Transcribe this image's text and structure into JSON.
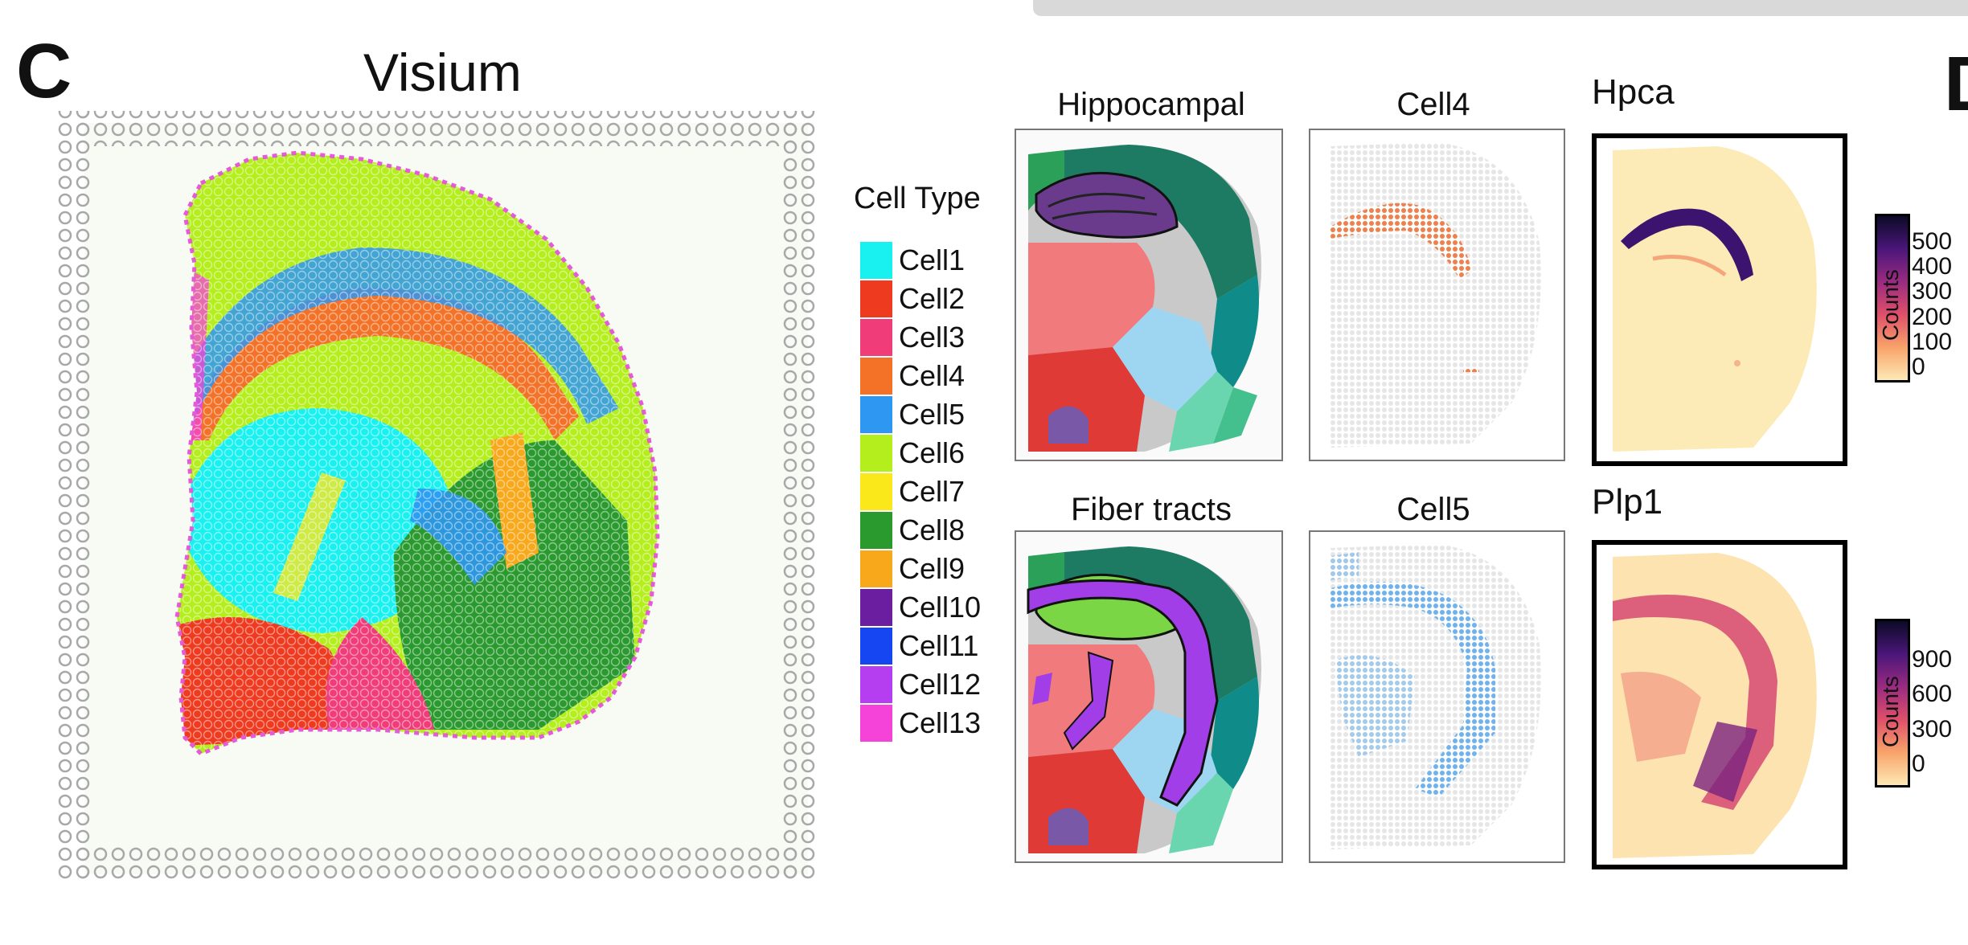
{
  "panels": {
    "c_letter": "C",
    "d_letter": "D",
    "visium_title": "Visium"
  },
  "legend": {
    "title": "Cell Type",
    "items": [
      {
        "label": "Cell1",
        "color": "#19f0f0"
      },
      {
        "label": "Cell2",
        "color": "#ee3a1f"
      },
      {
        "label": "Cell3",
        "color": "#f03c78"
      },
      {
        "label": "Cell4",
        "color": "#f37227"
      },
      {
        "label": "Cell5",
        "color": "#2e97f2"
      },
      {
        "label": "Cell6",
        "color": "#b4ee1c"
      },
      {
        "label": "Cell7",
        "color": "#fbe81a"
      },
      {
        "label": "Cell8",
        "color": "#2a9a2f"
      },
      {
        "label": "Cell9",
        "color": "#f8a91b"
      },
      {
        "label": "Cell10",
        "color": "#6b1ea0"
      },
      {
        "label": "Cell11",
        "color": "#1546f2"
      },
      {
        "label": "Cell12",
        "color": "#b53ff0"
      },
      {
        "label": "Cell13",
        "color": "#f542d8"
      }
    ]
  },
  "atlas": {
    "hippocampal_label": "Hippocampal",
    "fiber_label": "Fiber tracts"
  },
  "cells": {
    "cell4_label": "Cell4",
    "cell5_label": "Cell5"
  },
  "genes": {
    "hpca": {
      "label": "Hpca",
      "colorbar_ticks": [
        "500",
        "400",
        "300",
        "200",
        "100",
        "0"
      ],
      "colorbar_title": "Counts"
    },
    "plp1": {
      "label": "Plp1",
      "colorbar_ticks": [
        "900",
        "600",
        "300",
        "0"
      ],
      "colorbar_title": "Counts"
    }
  }
}
